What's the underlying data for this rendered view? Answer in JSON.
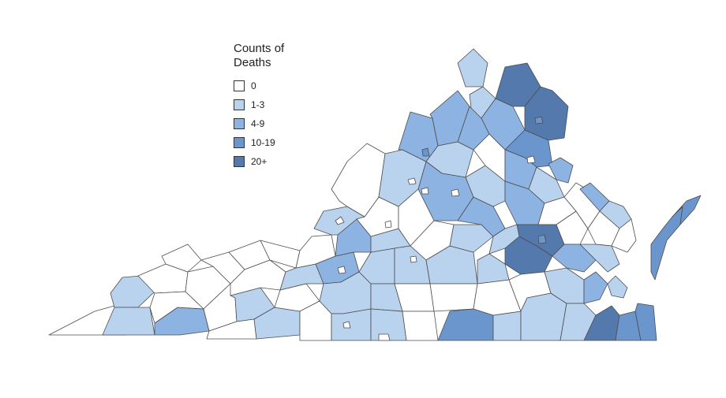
{
  "legend": {
    "title": "Counts of Deaths",
    "items": [
      {
        "label": "0",
        "color": "#ffffff"
      },
      {
        "label": "1-3",
        "color": "#b9d3ee"
      },
      {
        "label": "4-9",
        "color": "#8db3e2"
      },
      {
        "label": "10-19",
        "color": "#6b96cd"
      },
      {
        "label": "20+",
        "color": "#5479ad"
      }
    ]
  },
  "map": {
    "region": "Virginia counties",
    "outline_color": "#4d4d4d"
  }
}
